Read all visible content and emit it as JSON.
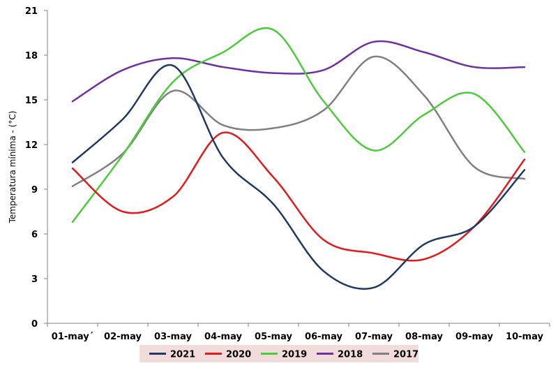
{
  "chart_data": {
    "type": "line",
    "x": [
      "01-may´",
      "02-may",
      "03-may",
      "04-may",
      "05-may",
      "06-may",
      "07-may",
      "08-may",
      "09-may",
      "10-may"
    ],
    "ylabel": "Temperatura mínima  - (°C)",
    "ylim": [
      0,
      21
    ],
    "yticks": [
      "0",
      "3",
      "6",
      "9",
      "12",
      "15",
      "18",
      "21"
    ],
    "grid": false,
    "smooth": true,
    "legend_position": "bottom",
    "legend_background": "#f2dcdb",
    "series": [
      {
        "name": "2021",
        "color": "#1f3864",
        "values": [
          10.8,
          13.7,
          17.3,
          11.1,
          8.0,
          3.5,
          2.4,
          5.3,
          6.5,
          10.3
        ]
      },
      {
        "name": "2020",
        "color": "#e31a1c",
        "values": [
          10.4,
          7.5,
          8.5,
          12.8,
          9.8,
          5.6,
          4.7,
          4.3,
          6.5,
          11.0
        ]
      },
      {
        "name": "2019",
        "color": "#4ccc3a",
        "values": [
          6.8,
          11.3,
          16.2,
          18.2,
          19.7,
          14.9,
          11.6,
          14.0,
          15.4,
          11.5
        ]
      },
      {
        "name": "2018",
        "color": "#7030a0",
        "values": [
          14.9,
          17.0,
          17.8,
          17.2,
          16.8,
          17.0,
          18.9,
          18.2,
          17.2,
          17.2
        ]
      },
      {
        "name": "2017",
        "color": "#808080",
        "values": [
          9.2,
          11.4,
          15.6,
          13.3,
          13.1,
          14.3,
          17.9,
          15.3,
          10.5,
          9.7
        ]
      }
    ]
  }
}
